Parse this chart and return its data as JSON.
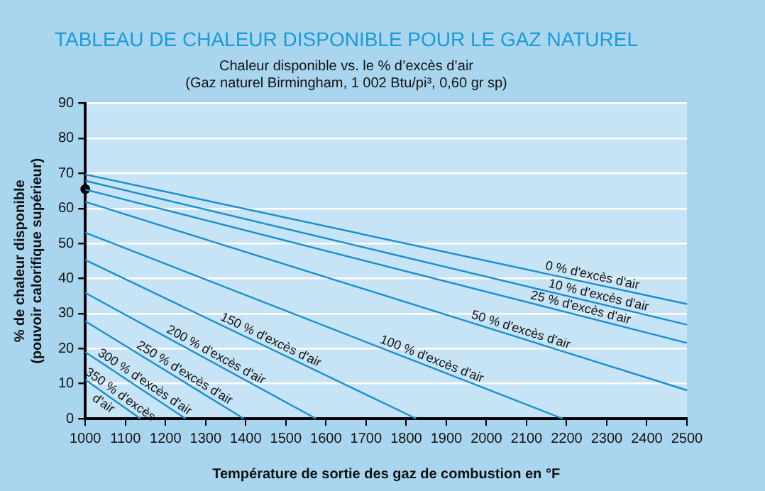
{
  "chart_data": {
    "type": "line",
    "title": "TABLEAU DE CHALEUR DISPONIBLE POUR LE GAZ NATUREL",
    "subtitle": "Chaleur disponible vs. le % d’excès d’air\n(Gaz naturel Birmingham, 1 002 Btu/pi³, 0,60 gr sp)",
    "xlabel": "Température de sortie des gaz de combustion en °F",
    "ylabel": "% de chaleur disponible\n(pouvoir calorifique supérieur)",
    "series": [
      {
        "name": "0 % d'excès d'air",
        "color": "#1a8fd0",
        "x": [
          1000,
          2500
        ],
        "values": [
          69.7,
          32.7
        ]
      },
      {
        "name": "10 % d'excès d'air",
        "color": "#1a8fd0",
        "x": [
          1000,
          2500
        ],
        "values": [
          67.9,
          26.8
        ]
      },
      {
        "name": "25 % d'excès d'air",
        "color": "#1a8fd0",
        "x": [
          1000,
          2500
        ],
        "values": [
          65.4,
          21.6
        ]
      },
      {
        "name": "50 % d'excès d'air",
        "color": "#1a8fd0",
        "x": [
          1000,
          2500
        ],
        "values": [
          61.9,
          8.1
        ]
      },
      {
        "name": "100 % d'excès d'air",
        "color": "#1a8fd0",
        "x": [
          1000,
          2190
        ],
        "values": [
          53.1,
          0
        ]
      },
      {
        "name": "150 % d'excès d'air",
        "color": "#1a8fd0",
        "x": [
          1000,
          1825
        ],
        "values": [
          45.3,
          0
        ]
      },
      {
        "name": "200 % d'excès d'air",
        "color": "#1a8fd0",
        "x": [
          1000,
          1575
        ],
        "values": [
          35.9,
          0
        ]
      },
      {
        "name": "250 % d'excès d'air",
        "color": "#1a8fd0",
        "x": [
          1000,
          1395
        ],
        "values": [
          27.8,
          0
        ]
      },
      {
        "name": "300 % d'excès d'air",
        "color": "#1a8fd0",
        "x": [
          1000,
          1250
        ],
        "values": [
          19.0,
          0
        ]
      },
      {
        "name": "350 % d'excès d'air",
        "color": "#1a8fd0",
        "x": [
          1000,
          1137
        ],
        "values": [
          11.1,
          0
        ]
      },
      {
        "type": "scatter",
        "color": "#000000",
        "x": [
          1000
        ],
        "values": [
          65.5
        ]
      }
    ],
    "xlim": [
      1000,
      2500
    ],
    "xticks": [
      1000,
      1100,
      1200,
      1300,
      1400,
      1500,
      1600,
      1700,
      1800,
      1900,
      2000,
      2100,
      2200,
      2300,
      2400,
      2500
    ],
    "ylim": [
      0,
      90
    ],
    "yticks": [
      0,
      10,
      20,
      30,
      40,
      50,
      60,
      70,
      80,
      90
    ],
    "grid": "y",
    "legend": false
  }
}
